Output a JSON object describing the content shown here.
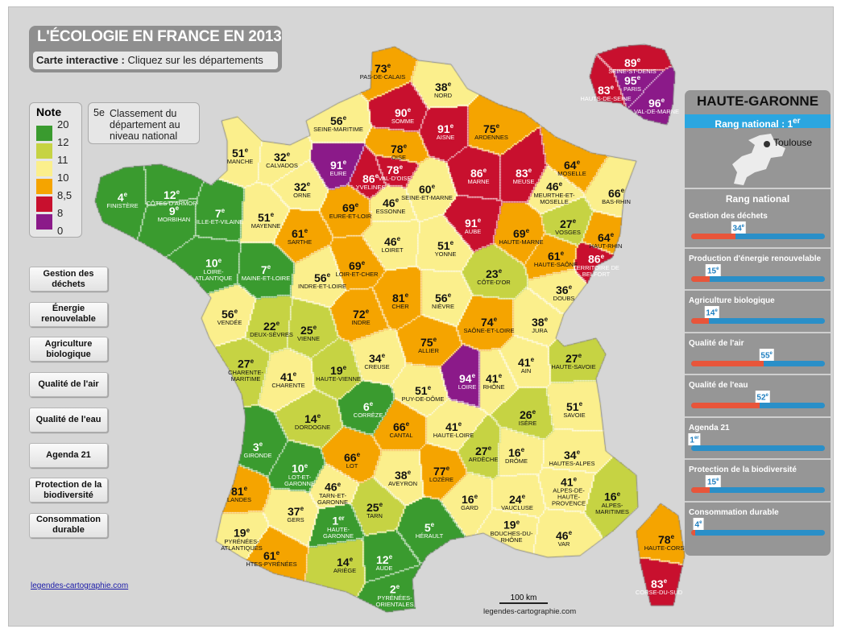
{
  "title": "L'ÉCOLOGIE EN FRANCE EN 2013",
  "subtitle_bold": "Carte interactive :",
  "subtitle": "Cliquez sur les départements",
  "ordinal_suffix": "e",
  "ordinal_suffix_first": "er",
  "colors": {
    "dgreen": "#3a9b2f",
    "lgreen": "#c6d343",
    "yellow": "#fbef8c",
    "orange": "#f5a400",
    "red": "#c8102e",
    "purple": "#8b1a89"
  },
  "legend": {
    "title": "Note",
    "values": [
      "20",
      "12",
      "11",
      "10",
      "8,5",
      "8",
      "0"
    ],
    "bands": [
      "dgreen",
      "lgreen",
      "yellow",
      "orange",
      "red",
      "purple"
    ]
  },
  "note_box": {
    "key": "5e",
    "text": "Classement du département au niveau national"
  },
  "buttons": [
    "Gestion des déchets",
    "Énergie renouvelable",
    "Agriculture biologique",
    "Qualité de l'air",
    "Qualité de l'eau",
    "Agenda 21",
    "Protection de la biodiversité",
    "Consommation durable"
  ],
  "link": "legendes-cartographie.com",
  "scale": "100 km",
  "credit": "legendes-cartographie.com",
  "departments": [
    {
      "rank": "73",
      "name": "PAS-DE-CALAIS",
      "band": "orange"
    },
    {
      "rank": "38",
      "name": "NORD",
      "band": "yellow"
    },
    {
      "rank": "90",
      "name": "SOMME",
      "band": "red"
    },
    {
      "rank": "91",
      "name": "AISNE",
      "band": "red"
    },
    {
      "rank": "75",
      "name": "ARDENNES",
      "band": "orange"
    },
    {
      "rank": "56",
      "name": "SEINE-MARITIME",
      "band": "yellow"
    },
    {
      "rank": "51",
      "name": "MANCHE",
      "band": "yellow"
    },
    {
      "rank": "32",
      "name": "CALVADOS",
      "band": "yellow"
    },
    {
      "rank": "91",
      "name": "EURE",
      "band": "purple"
    },
    {
      "rank": "78",
      "name": "OISE",
      "band": "orange"
    },
    {
      "rank": "86",
      "name": "YVELINES",
      "band": "red"
    },
    {
      "rank": "78",
      "name": "VAL-D'OISE",
      "band": "red"
    },
    {
      "rank": "46",
      "name": "ESSONNE",
      "band": "yellow"
    },
    {
      "rank": "60",
      "name": "SEINE-ET-MARNE",
      "band": "yellow"
    },
    {
      "rank": "86",
      "name": "MARNE",
      "band": "red"
    },
    {
      "rank": "83",
      "name": "MEUSE",
      "band": "red"
    },
    {
      "rank": "64",
      "name": "MOSELLE",
      "band": "orange"
    },
    {
      "rank": "46",
      "name": "MEURTHE-ET-MOSELLE",
      "band": "yellow"
    },
    {
      "rank": "66",
      "name": "BAS-RHIN",
      "band": "yellow"
    },
    {
      "rank": "4",
      "name": "FINISTÈRE",
      "band": "dgreen"
    },
    {
      "rank": "12",
      "name": "CÔTES-D'ARMOR",
      "band": "dgreen"
    },
    {
      "rank": "7",
      "name": "ILLE-ET-VILAINE",
      "band": "dgreen"
    },
    {
      "rank": "9",
      "name": "MORBIHAN",
      "band": "dgreen"
    },
    {
      "rank": "32",
      "name": "ORNE",
      "band": "yellow"
    },
    {
      "rank": "51",
      "name": "MAYENNE",
      "band": "yellow"
    },
    {
      "rank": "69",
      "name": "EURE-ET-LOIR",
      "band": "orange"
    },
    {
      "rank": "61",
      "name": "SARTHE",
      "band": "orange"
    },
    {
      "rank": "46",
      "name": "LOIRET",
      "band": "yellow"
    },
    {
      "rank": "51",
      "name": "YONNE",
      "band": "yellow"
    },
    {
      "rank": "91",
      "name": "AUBE",
      "band": "red"
    },
    {
      "rank": "69",
      "name": "HAUTE-MARNE",
      "band": "orange"
    },
    {
      "rank": "27",
      "name": "VOSGES",
      "band": "lgreen"
    },
    {
      "rank": "64",
      "name": "HAUT-RHIN",
      "band": "orange"
    },
    {
      "rank": "10",
      "name": "LOIRE-ATLANTIQUE",
      "band": "dgreen"
    },
    {
      "rank": "7",
      "name": "MAINE-ET-LOIRE",
      "band": "dgreen"
    },
    {
      "rank": "56",
      "name": "INDRE-ET-LOIRE",
      "band": "yellow"
    },
    {
      "rank": "69",
      "name": "LOIR-ET-CHER",
      "band": "orange"
    },
    {
      "rank": "61",
      "name": "HAUTE-SAÔNE",
      "band": "orange"
    },
    {
      "rank": "86",
      "name": "TERRITOIRE DE BELFORT",
      "band": "red"
    },
    {
      "rank": "23",
      "name": "CÔTE-D'OR",
      "band": "lgreen"
    },
    {
      "rank": "81",
      "name": "CHER",
      "band": "orange"
    },
    {
      "rank": "56",
      "name": "NIÈVRE",
      "band": "yellow"
    },
    {
      "rank": "36",
      "name": "DOUBS",
      "band": "yellow"
    },
    {
      "rank": "56",
      "name": "VENDÉE",
      "band": "yellow"
    },
    {
      "rank": "22",
      "name": "DEUX-SÈVRES",
      "band": "lgreen"
    },
    {
      "rank": "25",
      "name": "VIENNE",
      "band": "lgreen"
    },
    {
      "rank": "72",
      "name": "INDRE",
      "band": "orange"
    },
    {
      "rank": "74",
      "name": "SAÔNE-ET-LOIRE",
      "band": "orange"
    },
    {
      "rank": "38",
      "name": "JURA",
      "band": "yellow"
    },
    {
      "rank": "75",
      "name": "ALLIER",
      "band": "orange"
    },
    {
      "rank": "27",
      "name": "CHARENTE-MARITIME",
      "band": "lgreen"
    },
    {
      "rank": "41",
      "name": "CHARENTE",
      "band": "yellow"
    },
    {
      "rank": "19",
      "name": "HAUTE-VIENNE",
      "band": "lgreen"
    },
    {
      "rank": "34",
      "name": "CREUSE",
      "band": "yellow"
    },
    {
      "rank": "94",
      "name": "LOIRE",
      "band": "purple"
    },
    {
      "rank": "41",
      "name": "RHÔNE",
      "band": "yellow"
    },
    {
      "rank": "41",
      "name": "AIN",
      "band": "yellow"
    },
    {
      "rank": "27",
      "name": "HAUTE-SAVOIE",
      "band": "lgreen"
    },
    {
      "rank": "51",
      "name": "PUY-DE-DÔME",
      "band": "yellow"
    },
    {
      "rank": "14",
      "name": "DORDOGNE",
      "band": "lgreen"
    },
    {
      "rank": "6",
      "name": "CORRÈZE",
      "band": "dgreen"
    },
    {
      "rank": "51",
      "name": "SAVOIE",
      "band": "yellow"
    },
    {
      "rank": "26",
      "name": "ISÈRE",
      "band": "lgreen"
    },
    {
      "rank": "66",
      "name": "CANTAL",
      "band": "orange"
    },
    {
      "rank": "41",
      "name": "HAUTE-LOIRE",
      "band": "yellow"
    },
    {
      "rank": "3",
      "name": "GIRONDE",
      "band": "dgreen"
    },
    {
      "rank": "10",
      "name": "LOT-ET-GARONNE",
      "band": "dgreen"
    },
    {
      "rank": "66",
      "name": "LOT",
      "band": "orange"
    },
    {
      "rank": "27",
      "name": "ARDÈCHE",
      "band": "lgreen"
    },
    {
      "rank": "16",
      "name": "DRÔME",
      "band": "yellow"
    },
    {
      "rank": "34",
      "name": "HAUTES-ALPES",
      "band": "yellow"
    },
    {
      "rank": "38",
      "name": "AVEYRON",
      "band": "yellow"
    },
    {
      "rank": "77",
      "name": "LOZÈRE",
      "band": "orange"
    },
    {
      "rank": "81",
      "name": "LANDES",
      "band": "orange"
    },
    {
      "rank": "41",
      "name": "ALPES-DE-HAUTE-PROVENCE",
      "band": "yellow"
    },
    {
      "rank": "16",
      "name": "GARD",
      "band": "yellow"
    },
    {
      "rank": "24",
      "name": "VAUCLUSE",
      "band": "yellow"
    },
    {
      "rank": "16",
      "name": "ALPES-MARITIMES",
      "band": "lgreen"
    },
    {
      "rank": "46",
      "name": "TARN-ET-GARONNE",
      "band": "yellow"
    },
    {
      "rank": "37",
      "name": "GERS",
      "band": "yellow"
    },
    {
      "rank": "25",
      "name": "TARN",
      "band": "lgreen"
    },
    {
      "rank": "1",
      "name": "HAUTE-GARONNE",
      "band": "dgreen"
    },
    {
      "rank": "5",
      "name": "HÉRAULT",
      "band": "dgreen"
    },
    {
      "rank": "19",
      "name": "BOUCHES-DU-RHÔNE",
      "band": "yellow"
    },
    {
      "rank": "46",
      "name": "VAR",
      "band": "yellow"
    },
    {
      "rank": "19",
      "name": "PYRÉNÉES-ATLANTIQUES",
      "band": "yellow"
    },
    {
      "rank": "61",
      "name": "HTES-PYRÉNÉES",
      "band": "orange"
    },
    {
      "rank": "14",
      "name": "ARIÈGE",
      "band": "lgreen"
    },
    {
      "rank": "12",
      "name": "AUDE",
      "band": "dgreen"
    },
    {
      "rank": "2",
      "name": "PYRÉNÉES-ORIENTALES",
      "band": "dgreen"
    },
    {
      "rank": "78",
      "name": "HAUTE-CORSE",
      "band": "orange"
    },
    {
      "rank": "83",
      "name": "CORSE-DU-SUD",
      "band": "red"
    },
    {
      "rank": "95",
      "name": "PARIS",
      "band": "purple"
    },
    {
      "rank": "89",
      "name": "SEINE-ST-DENIS",
      "band": "red"
    },
    {
      "rank": "83",
      "name": "HAUTS-DE-SEINE",
      "band": "red"
    },
    {
      "rank": "96",
      "name": "VAL-DE-MARNE",
      "band": "purple"
    }
  ],
  "panel": {
    "department": "HAUTE-GARONNE",
    "national_rank_label": "Rang national :",
    "national_rank": "1",
    "national_rank_suffix": "er",
    "city": "Toulouse",
    "section_title": "Rang national",
    "criteria": [
      {
        "label": "Gestion des déchets",
        "rank": "34",
        "suffix": "e"
      },
      {
        "label": "Production d'énergie renouvelable",
        "rank": "15",
        "suffix": "e"
      },
      {
        "label": "Agriculture biologique",
        "rank": "14",
        "suffix": "e"
      },
      {
        "label": "Qualité de l'air",
        "rank": "55",
        "suffix": "e"
      },
      {
        "label": "Qualité de l'eau",
        "rank": "52",
        "suffix": "e"
      },
      {
        "label": "Agenda 21",
        "rank": "1",
        "suffix": "er"
      },
      {
        "label": "Protection de la biodiversité",
        "rank": "15",
        "suffix": "e"
      },
      {
        "label": "Consommation durable",
        "rank": "4",
        "suffix": "e"
      }
    ]
  }
}
